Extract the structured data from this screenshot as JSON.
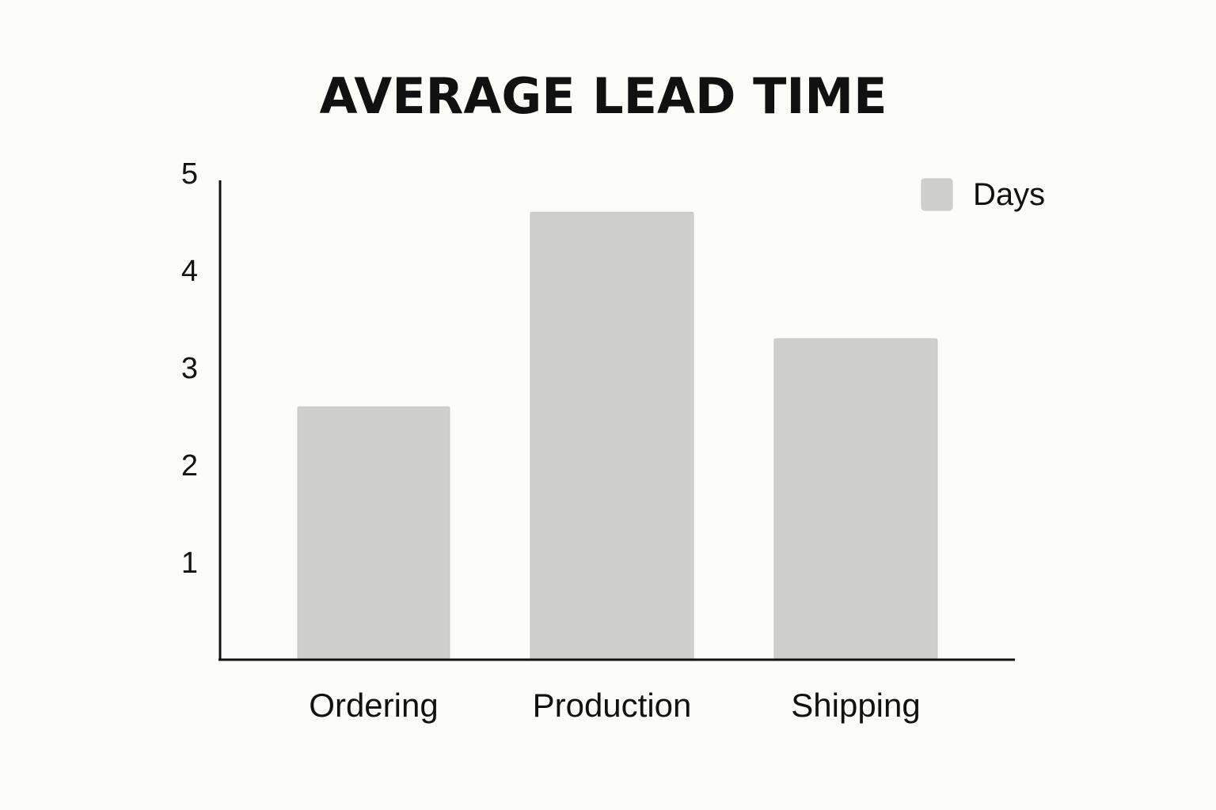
{
  "chart_data": {
    "type": "bar",
    "title": "AVERAGE LEAD TIME",
    "categories": [
      "Ordering",
      "Production",
      "Shipping"
    ],
    "series": [
      {
        "name": "Days",
        "values": [
          2.6,
          4.6,
          3.3
        ],
        "color": "#cfd0cb"
      }
    ],
    "yticks": [
      1,
      2,
      3,
      4,
      5
    ],
    "ylim": [
      0,
      4.9
    ],
    "grid": false,
    "legend_position": "top-right",
    "colors": {
      "axis": "#111111",
      "text": "#111111",
      "background": "#fcfcf8"
    }
  }
}
